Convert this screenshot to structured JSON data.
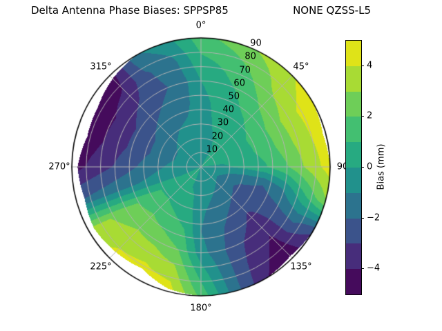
{
  "title": {
    "left": "Delta Antenna Phase Biases: SPPSP85",
    "right": "NONE QZSS-L5"
  },
  "chart_data": {
    "type": "heatmap",
    "projection": "polar",
    "title": "Delta Antenna Phase Biases: SPPSP85        NONE QZSS-L5",
    "value_unit": "mm",
    "angular_ticks": [
      {
        "az": 0,
        "label": "0°"
      },
      {
        "az": 45,
        "label": "45°"
      },
      {
        "az": 90,
        "label": "90"
      },
      {
        "az": 135,
        "label": "135°"
      },
      {
        "az": 180,
        "label": "180°"
      },
      {
        "az": 225,
        "label": "225°"
      },
      {
        "az": 270,
        "label": "270°"
      },
      {
        "az": 315,
        "label": "315°"
      }
    ],
    "radial_ticks": [
      10,
      20,
      30,
      40,
      50,
      60,
      70,
      80,
      90
    ],
    "radial_max": 90,
    "grid_on": true,
    "colorbar": {
      "label": "Bias (mm)",
      "range": [
        -5,
        5
      ],
      "level_step": 1,
      "ticks": [
        {
          "value": 4,
          "label": "4"
        },
        {
          "value": 2,
          "label": "2"
        },
        {
          "value": 0,
          "label": "0"
        },
        {
          "value": -2,
          "label": "−2"
        },
        {
          "value": -4,
          "label": "−4"
        }
      ],
      "colors": [
        "#450b5c",
        "#472d7b",
        "#3b538b",
        "#2c738e",
        "#21918c",
        "#27aa81",
        "#43bf71",
        "#6ece58",
        "#a8db34",
        "#dfe318"
      ]
    },
    "grid": {
      "azimuths": [
        0,
        15,
        30,
        45,
        60,
        75,
        90,
        105,
        120,
        135,
        150,
        165,
        180,
        195,
        210,
        225,
        240,
        255,
        270,
        285,
        300,
        315,
        330,
        345,
        360
      ],
      "radii": [
        0,
        15,
        30,
        45,
        60,
        75,
        90
      ],
      "values": [
        [
          0.0,
          -0.3,
          -0.5,
          -0.4,
          0.0,
          0.8,
          1.6
        ],
        [
          0.0,
          -0.2,
          0.0,
          0.3,
          0.7,
          1.3,
          2.4
        ],
        [
          0.0,
          0.0,
          0.3,
          0.7,
          1.3,
          2.2,
          3.2
        ],
        [
          0.0,
          0.2,
          0.5,
          1.1,
          2.2,
          3.3,
          3.9
        ],
        [
          0.0,
          0.3,
          0.7,
          1.4,
          2.7,
          3.9,
          4.7
        ],
        [
          0.0,
          0.2,
          0.6,
          1.3,
          2.5,
          3.7,
          4.7
        ],
        [
          0.0,
          -0.2,
          0.3,
          0.9,
          1.9,
          3.3,
          4.5
        ],
        [
          0.0,
          -0.8,
          -1.6,
          -1.9,
          -0.9,
          1.0,
          3.0
        ],
        [
          0.0,
          -1.2,
          -2.3,
          -2.7,
          -2.3,
          -1.8,
          -2.8
        ],
        [
          0.0,
          -1.0,
          -2.0,
          -3.0,
          -3.7,
          -4.3,
          -4.8
        ],
        [
          0.0,
          -0.8,
          -1.6,
          -2.4,
          -3.0,
          -3.5,
          -3.9
        ],
        [
          0.0,
          -0.6,
          -1.2,
          -1.7,
          -1.9,
          -1.7,
          -1.5
        ],
        [
          0.0,
          -0.4,
          -0.8,
          -1.0,
          -0.6,
          0.6,
          1.7
        ],
        [
          0.0,
          -0.1,
          0.3,
          1.0,
          2.0,
          3.4,
          4.6
        ],
        [
          0.0,
          0.1,
          0.6,
          1.5,
          2.7,
          3.9,
          4.7
        ],
        [
          0.0,
          0.2,
          0.9,
          1.9,
          2.9,
          3.7,
          4.5
        ],
        [
          0.0,
          0.2,
          0.9,
          1.7,
          2.5,
          3.1,
          3.5
        ],
        [
          0.0,
          -0.3,
          -0.6,
          -1.0,
          -1.4,
          -1.8,
          -2.2
        ],
        [
          0.0,
          -0.5,
          -1.2,
          -2.0,
          -2.9,
          -3.7,
          -4.5
        ],
        [
          0.0,
          -0.8,
          -1.6,
          -2.5,
          -3.4,
          -4.3,
          -4.8
        ],
        [
          0.0,
          -0.8,
          -1.6,
          -2.5,
          -3.5,
          -4.4,
          -4.8
        ],
        [
          0.0,
          -0.6,
          -1.3,
          -2.1,
          -2.9,
          -3.9,
          -4.5
        ],
        [
          0.0,
          -0.5,
          -1.0,
          -1.7,
          -2.3,
          -2.1,
          -1.1
        ],
        [
          0.0,
          -0.4,
          -0.8,
          -1.3,
          -1.7,
          -1.3,
          -0.3
        ],
        [
          0.0,
          -0.3,
          -0.5,
          -0.4,
          0.0,
          0.8,
          1.6
        ]
      ]
    },
    "data_extent_rmax": [
      90,
      90,
      90,
      90,
      90,
      88,
      90,
      90,
      90,
      88,
      90,
      90,
      90,
      88,
      82,
      84,
      86,
      84,
      86,
      82,
      83,
      87,
      90,
      90,
      90
    ],
    "style": {
      "grid_color": "#b4b4b4",
      "outline_color": "#000000",
      "background": "#ffffff"
    }
  }
}
